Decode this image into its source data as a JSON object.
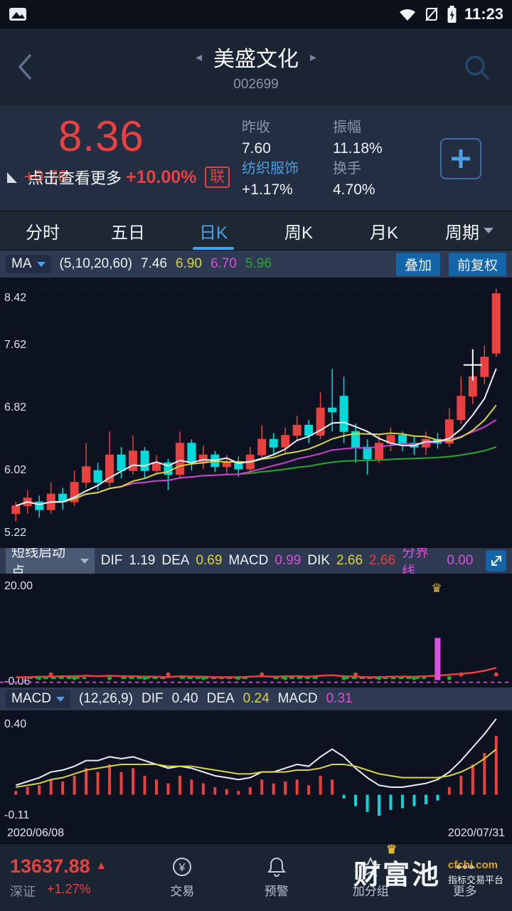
{
  "status_bar": {
    "time": "11:23"
  },
  "header": {
    "title": "美盛文化",
    "code": "002699",
    "prev_icon": "◂",
    "next_icon": "▸"
  },
  "quote": {
    "price": "8.36",
    "change_value": "+0.76",
    "change_pct": "+10.00%",
    "overlay_text": "点击查看更多",
    "link_badge": "联",
    "col1": {
      "label1": "昨收",
      "value1": "7.60",
      "label2": "纺织服饰",
      "value2": "+1.17%"
    },
    "col2": {
      "label1": "振幅",
      "value1": "11.18%",
      "label2": "换手",
      "value2": "4.70%"
    }
  },
  "tabs": {
    "items": [
      {
        "label": "分时"
      },
      {
        "label": "五日"
      },
      {
        "label": "日K"
      },
      {
        "label": "周K"
      },
      {
        "label": "月K"
      },
      {
        "label": "周期"
      }
    ],
    "selected": "日K"
  },
  "ma_bar": {
    "selector": "MA",
    "params": "(5,10,20,60)",
    "ma5": "7.46",
    "ma10": "6.90",
    "ma20": "6.70",
    "ma60": "5.96",
    "overlay_btn": "叠加",
    "adjust_btn": "前复权"
  },
  "signal_bar": {
    "selector": "短线启动点",
    "dif_label": "DIF",
    "dif": "1.19",
    "dea_label": "DEA",
    "dea": "0.69",
    "macd_label": "MACD",
    "macd": "0.99",
    "dik_label": "DIK",
    "dik": "2.66",
    "extra": "2.66",
    "boundary_label": "分界线",
    "boundary": "0.00"
  },
  "macd_bar": {
    "selector": "MACD",
    "params": "(12,26,9)",
    "dif_label": "DIF",
    "dif": "0.40",
    "dea_label": "DEA",
    "dea": "0.24",
    "macd_label": "MACD",
    "macd": "0.31"
  },
  "dates": {
    "start": "2020/06/08",
    "end": "2020/07/31"
  },
  "bottom_nav": {
    "index_value": "13637.88",
    "index_arrow": "▲",
    "index_name": "深证",
    "index_change": "+1.27%",
    "items": [
      {
        "label": "交易"
      },
      {
        "label": "预警"
      },
      {
        "label": "加分组"
      },
      {
        "label": "更多"
      }
    ]
  },
  "watermark": {
    "brand": "财富池",
    "crown": "♛",
    "domain": "cfchi.com",
    "tagline": "指标交易平台"
  },
  "chart_data": {
    "type": "candlestick+indicators",
    "kline": {
      "ymax": 8.42,
      "ymin": 5.22,
      "ylabels": [
        "8.42",
        "7.62",
        "6.82",
        "6.02",
        "5.22"
      ],
      "ma_windows": [
        5,
        10,
        20,
        60
      ],
      "ma_values_shown": [
        7.46,
        6.9,
        6.7,
        5.96
      ],
      "cross": {
        "index": 39,
        "price": 7.45
      },
      "candles": [
        [
          5.55,
          5.65,
          5.45,
          5.7
        ],
        [
          5.65,
          5.75,
          5.55,
          5.85
        ],
        [
          5.7,
          5.6,
          5.5,
          5.78
        ],
        [
          5.6,
          5.8,
          5.55,
          5.95
        ],
        [
          5.8,
          5.7,
          5.6,
          5.88
        ],
        [
          5.7,
          5.95,
          5.65,
          6.1
        ],
        [
          5.95,
          6.15,
          5.88,
          6.45
        ],
        [
          6.1,
          5.95,
          5.85,
          6.2
        ],
        [
          5.95,
          6.3,
          5.9,
          6.6
        ],
        [
          6.3,
          6.1,
          6.0,
          6.4
        ],
        [
          6.1,
          6.35,
          6.05,
          6.55
        ],
        [
          6.35,
          6.1,
          6.0,
          6.4
        ],
        [
          6.1,
          6.2,
          6.05,
          6.3
        ],
        [
          6.2,
          6.05,
          5.85,
          6.25
        ],
        [
          6.05,
          6.45,
          6.0,
          6.6
        ],
        [
          6.45,
          6.2,
          6.1,
          6.5
        ],
        [
          6.2,
          6.3,
          6.12,
          6.42
        ],
        [
          6.3,
          6.15,
          6.08,
          6.35
        ],
        [
          6.15,
          6.2,
          6.05,
          6.3
        ],
        [
          6.2,
          6.12,
          6.02,
          6.28
        ],
        [
          6.12,
          6.3,
          6.08,
          6.4
        ],
        [
          6.3,
          6.5,
          6.25,
          6.68
        ],
        [
          6.5,
          6.4,
          6.3,
          6.58
        ],
        [
          6.4,
          6.55,
          6.32,
          6.65
        ],
        [
          6.55,
          6.68,
          6.48,
          6.8
        ],
        [
          6.68,
          6.55,
          6.45,
          6.75
        ],
        [
          6.55,
          6.9,
          6.5,
          7.1
        ],
        [
          6.9,
          6.85,
          6.6,
          7.4
        ],
        [
          7.05,
          6.6,
          6.45,
          7.3
        ],
        [
          6.6,
          6.4,
          6.2,
          6.7
        ],
        [
          6.4,
          6.25,
          6.05,
          6.5
        ],
        [
          6.25,
          6.45,
          6.2,
          6.55
        ],
        [
          6.45,
          6.55,
          6.35,
          6.65
        ],
        [
          6.55,
          6.45,
          6.35,
          6.6
        ],
        [
          6.45,
          6.4,
          6.3,
          6.55
        ],
        [
          6.4,
          6.5,
          6.3,
          6.6
        ],
        [
          6.5,
          6.45,
          6.38,
          6.58
        ],
        [
          6.45,
          6.75,
          6.4,
          6.9
        ],
        [
          6.75,
          7.05,
          6.7,
          7.3
        ],
        [
          7.05,
          7.3,
          6.95,
          7.5
        ],
        [
          7.3,
          7.55,
          7.2,
          7.7
        ],
        [
          7.6,
          8.36,
          7.55,
          8.42
        ]
      ]
    },
    "signal": {
      "top_label": "20.00",
      "bottom_label": "-0.06",
      "ymax": 20.0,
      "ymin": -0.06,
      "red_line": [
        0.3,
        0.3,
        0.4,
        0.4,
        0.5,
        0.5,
        0.6,
        0.5,
        0.6,
        0.5,
        0.5,
        0.4,
        0.4,
        0.3,
        0.5,
        0.4,
        0.4,
        0.3,
        0.3,
        0.3,
        0.4,
        0.5,
        0.4,
        0.5,
        0.5,
        0.4,
        0.6,
        0.7,
        0.5,
        0.4,
        0.3,
        0.3,
        0.4,
        0.4,
        0.4,
        0.5,
        0.6,
        0.8,
        1.0,
        1.2,
        1.6,
        2.2
      ],
      "green_segments": [
        [
          1,
          6
        ],
        [
          9,
          13
        ],
        [
          14,
          20
        ],
        [
          22,
          26
        ],
        [
          28,
          35
        ]
      ],
      "dots_green": [
        2,
        5,
        8,
        11,
        16,
        19,
        23,
        28,
        31,
        34,
        37
      ],
      "dots_red": [
        3,
        13,
        21,
        29,
        38,
        41
      ],
      "spike": {
        "index": 36,
        "value": 8.5
      },
      "crown_glyph": "♛"
    },
    "macd": {
      "top_label": "0.40",
      "bottom_label": "-0.11",
      "ymax": 0.4,
      "ymin": -0.11,
      "hist": [
        0.02,
        0.04,
        0.05,
        0.08,
        0.07,
        0.1,
        0.14,
        0.12,
        0.16,
        0.12,
        0.14,
        0.1,
        0.08,
        0.06,
        0.1,
        0.08,
        0.06,
        0.04,
        0.03,
        0.02,
        0.04,
        0.08,
        0.06,
        0.07,
        0.08,
        0.05,
        0.1,
        0.08,
        -0.02,
        -0.06,
        -0.09,
        -0.11,
        -0.08,
        -0.07,
        -0.06,
        -0.05,
        -0.03,
        0.04,
        0.1,
        0.16,
        0.22,
        0.31
      ],
      "dif": [
        0.05,
        0.07,
        0.09,
        0.12,
        0.13,
        0.15,
        0.18,
        0.18,
        0.2,
        0.19,
        0.2,
        0.18,
        0.16,
        0.14,
        0.15,
        0.14,
        0.12,
        0.1,
        0.09,
        0.08,
        0.09,
        0.12,
        0.12,
        0.14,
        0.16,
        0.15,
        0.2,
        0.24,
        0.2,
        0.14,
        0.09,
        0.05,
        0.04,
        0.04,
        0.05,
        0.06,
        0.08,
        0.12,
        0.18,
        0.25,
        0.32,
        0.4
      ],
      "dea": [
        0.04,
        0.05,
        0.06,
        0.08,
        0.09,
        0.11,
        0.13,
        0.14,
        0.15,
        0.16,
        0.16,
        0.16,
        0.16,
        0.15,
        0.15,
        0.15,
        0.14,
        0.13,
        0.12,
        0.11,
        0.11,
        0.12,
        0.12,
        0.12,
        0.13,
        0.13,
        0.14,
        0.16,
        0.16,
        0.15,
        0.13,
        0.11,
        0.1,
        0.09,
        0.09,
        0.09,
        0.09,
        0.1,
        0.12,
        0.15,
        0.19,
        0.24
      ]
    }
  }
}
